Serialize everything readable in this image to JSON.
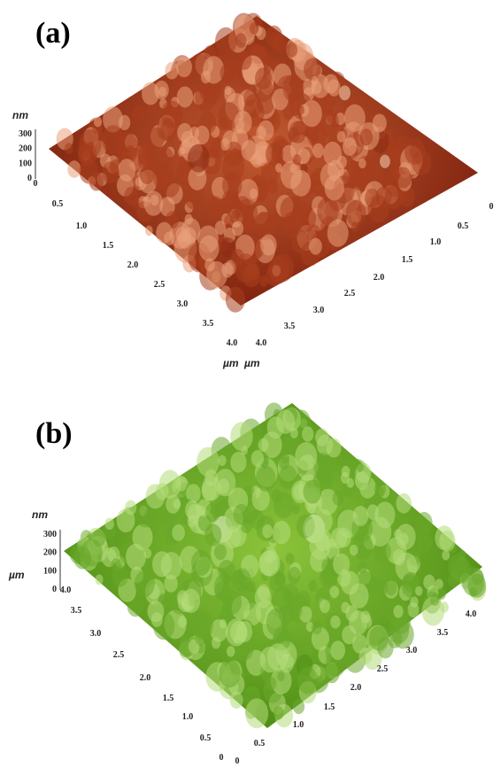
{
  "panels": [
    {
      "label": "(a)",
      "z_unit": "nm",
      "z_ticks": [
        "300",
        "200",
        "100",
        "0"
      ],
      "left_ticks": [
        "0",
        "0.5",
        "1.0",
        "1.5",
        "2.0",
        "2.5",
        "3.0",
        "3.5",
        "4.0"
      ],
      "right_ticks": [
        "0",
        "0.5",
        "1.0",
        "1.5",
        "2.0",
        "2.5",
        "3.0",
        "3.5",
        "4.0"
      ],
      "x_unit": "µm",
      "y_unit": "µm"
    },
    {
      "label": "(b)",
      "z_unit": "nm",
      "z_ticks": [
        "300",
        "200",
        "100",
        "0"
      ],
      "left_ticks": [
        "4.0",
        "3.5",
        "3.0",
        "2.5",
        "2.0",
        "1.5",
        "1.0",
        "0.5",
        "0"
      ],
      "right_ticks": [
        "0",
        "0.5",
        "1.0",
        "1.5",
        "2.0",
        "2.5",
        "3.0",
        "3.5",
        "4.0"
      ],
      "y_unit": "µm"
    }
  ]
}
